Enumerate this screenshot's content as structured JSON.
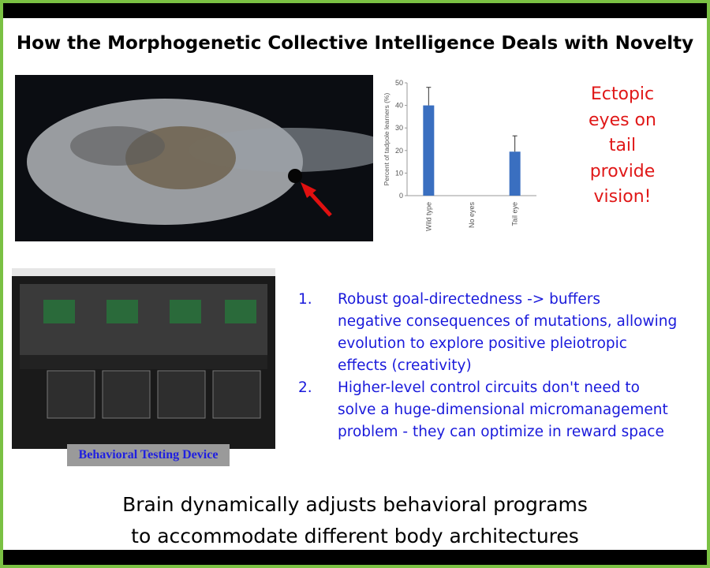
{
  "title": "How the Morphogenetic Collective Intelligence Deals with Novelty",
  "chart_data": {
    "type": "bar",
    "ylabel": "Percent of tadpole learners (%)",
    "categories": [
      "Wild type",
      "No eyes",
      "Tail eye"
    ],
    "values": [
      40,
      0,
      19.5
    ],
    "error_upper": [
      48,
      0,
      26.5
    ],
    "ylim": [
      0,
      50
    ],
    "yticks": [
      "0",
      "10",
      "20",
      "30",
      "40",
      "50"
    ],
    "bar_color": "#3a6fc0",
    "grid": false
  },
  "ectopic": [
    "Ectopic",
    "eyes on",
    "tail",
    "provide",
    "vision!"
  ],
  "caption": "Behavioral Testing Device",
  "list": [
    {
      "num": "1.",
      "lines": [
        "Robust goal-directedness -> buffers",
        "negative consequences of mutations, allowing",
        "evolution to explore positive pleiotropic",
        "effects (creativity)"
      ]
    },
    {
      "num": "2.",
      "lines": [
        "Higher-level control circuits don't need to",
        "solve a huge-dimensional micromanagement",
        "problem - they can optimize in reward space"
      ]
    }
  ],
  "bottom": [
    "Brain dynamically adjusts behavioral programs",
    "to accommodate different body architectures"
  ]
}
